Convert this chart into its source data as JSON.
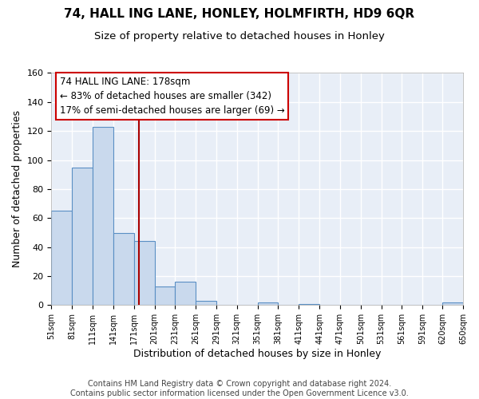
{
  "title": "74, HALL ING LANE, HONLEY, HOLMFIRTH, HD9 6QR",
  "subtitle": "Size of property relative to detached houses in Honley",
  "xlabel": "Distribution of detached houses by size in Honley",
  "ylabel": "Number of detached properties",
  "bin_edges": [
    51,
    81,
    111,
    141,
    171,
    201,
    231,
    261,
    291,
    321,
    351,
    381,
    411,
    441,
    471,
    501,
    531,
    561,
    591,
    620,
    650
  ],
  "bar_heights": [
    65,
    95,
    123,
    50,
    44,
    13,
    16,
    3,
    0,
    0,
    2,
    0,
    1,
    0,
    0,
    0,
    0,
    0,
    0,
    2
  ],
  "bar_color": "#c9d9ed",
  "bar_edge_color": "#5a8fc4",
  "vline_x": 178,
  "vline_color": "#aa0000",
  "annotation_line1": "74 HALL ING LANE: 178sqm",
  "annotation_line2": "← 83% of detached houses are smaller (342)",
  "annotation_line3": "17% of semi-detached houses are larger (69) →",
  "ylim": [
    0,
    160
  ],
  "yticks": [
    0,
    20,
    40,
    60,
    80,
    100,
    120,
    140,
    160
  ],
  "tick_labels": [
    "51sqm",
    "81sqm",
    "111sqm",
    "141sqm",
    "171sqm",
    "201sqm",
    "231sqm",
    "261sqm",
    "291sqm",
    "321sqm",
    "351sqm",
    "381sqm",
    "411sqm",
    "441sqm",
    "471sqm",
    "501sqm",
    "531sqm",
    "561sqm",
    "591sqm",
    "620sqm",
    "650sqm"
  ],
  "footer_text": "Contains HM Land Registry data © Crown copyright and database right 2024.\nContains public sector information licensed under the Open Government Licence v3.0.",
  "background_color": "#ffffff",
  "plot_bg_color": "#e8eef7",
  "grid_color": "#ffffff",
  "title_fontsize": 11,
  "subtitle_fontsize": 9.5,
  "annotation_fontsize": 8.5,
  "footer_fontsize": 7,
  "xlabel_fontsize": 9,
  "ylabel_fontsize": 9
}
